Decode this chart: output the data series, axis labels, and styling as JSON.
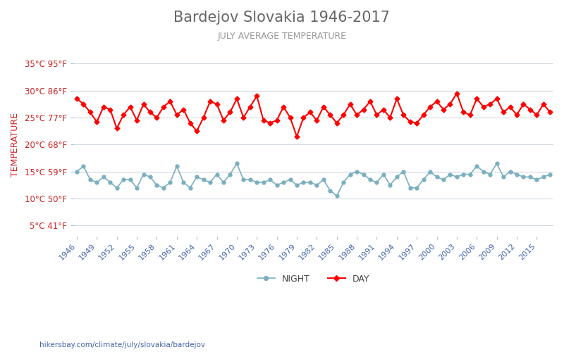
{
  "title": "Bardejov Slovakia 1946-2017",
  "subtitle": "JULY AVERAGE TEMPERATURE",
  "ylabel": "TEMPERATURE",
  "xlabel_url": "hikersbay.com/climate/july/slovakia/bardejov",
  "years": [
    1946,
    1947,
    1948,
    1949,
    1950,
    1951,
    1952,
    1953,
    1954,
    1955,
    1956,
    1957,
    1958,
    1959,
    1960,
    1961,
    1962,
    1963,
    1964,
    1965,
    1966,
    1967,
    1968,
    1969,
    1970,
    1971,
    1972,
    1973,
    1974,
    1975,
    1976,
    1977,
    1978,
    1979,
    1980,
    1981,
    1982,
    1983,
    1984,
    1985,
    1986,
    1987,
    1988,
    1989,
    1990,
    1991,
    1992,
    1993,
    1994,
    1995,
    1996,
    1997,
    1998,
    1999,
    2000,
    2001,
    2002,
    2003,
    2004,
    2005,
    2006,
    2007,
    2008,
    2009,
    2010,
    2011,
    2012,
    2013,
    2014,
    2015,
    2016,
    2017
  ],
  "day_temps": [
    28.5,
    27.5,
    26.0,
    24.2,
    27.0,
    26.5,
    23.0,
    25.5,
    27.0,
    24.5,
    27.5,
    26.0,
    25.0,
    27.0,
    28.0,
    25.5,
    26.5,
    24.0,
    22.5,
    25.0,
    28.0,
    27.5,
    24.5,
    26.0,
    28.5,
    25.0,
    27.0,
    29.0,
    24.5,
    24.0,
    24.5,
    27.0,
    25.0,
    21.5,
    25.0,
    26.0,
    24.5,
    27.0,
    25.5,
    24.0,
    25.5,
    27.5,
    25.5,
    26.5,
    28.0,
    25.5,
    26.5,
    25.0,
    28.5,
    25.5,
    24.2,
    24.0,
    25.5,
    27.0,
    28.0,
    26.5,
    27.5,
    29.5,
    26.0,
    25.5,
    28.5,
    27.0,
    27.5,
    28.5,
    26.0,
    27.0,
    25.5,
    27.5,
    26.5,
    25.5,
    27.5,
    26.0
  ],
  "night_temps": [
    15.0,
    16.0,
    13.5,
    13.0,
    14.0,
    13.0,
    12.0,
    13.5,
    13.5,
    12.0,
    14.5,
    14.0,
    12.5,
    12.0,
    13.0,
    16.0,
    13.0,
    12.0,
    14.0,
    13.5,
    13.0,
    14.5,
    13.0,
    14.5,
    16.5,
    13.5,
    13.5,
    13.0,
    13.0,
    13.5,
    12.5,
    13.0,
    13.5,
    12.5,
    13.0,
    13.0,
    12.5,
    13.5,
    11.5,
    10.5,
    13.0,
    14.5,
    15.0,
    14.5,
    13.5,
    13.0,
    14.5,
    12.5,
    14.0,
    15.0,
    12.0,
    12.0,
    13.5,
    15.0,
    14.0,
    13.5,
    14.5,
    14.0,
    14.5,
    14.5,
    16.0,
    15.0,
    14.5,
    16.5,
    14.0,
    15.0,
    14.5,
    14.0,
    14.0,
    13.5,
    14.0,
    14.5
  ],
  "yticks_c": [
    5,
    10,
    15,
    20,
    25,
    30,
    35
  ],
  "yticks_f": [
    41,
    50,
    59,
    68,
    77,
    86,
    95
  ],
  "xtick_years": [
    1946,
    1949,
    1952,
    1955,
    1958,
    1961,
    1964,
    1967,
    1970,
    1973,
    1976,
    1979,
    1982,
    1985,
    1988,
    1991,
    1994,
    1997,
    2000,
    2003,
    2006,
    2009,
    2012,
    2015
  ],
  "ylim": [
    3,
    37
  ],
  "day_color": "#ff0000",
  "night_color": "#7aafc0",
  "grid_color": "#d0d8e0",
  "title_color": "#666666",
  "subtitle_color": "#999999",
  "tick_label_color": "#cc2222",
  "xtick_label_color": "#4466aa",
  "bg_color": "#ffffff",
  "legend_night_label": "NIGHT",
  "legend_day_label": "DAY",
  "url_color": "#4466aa"
}
